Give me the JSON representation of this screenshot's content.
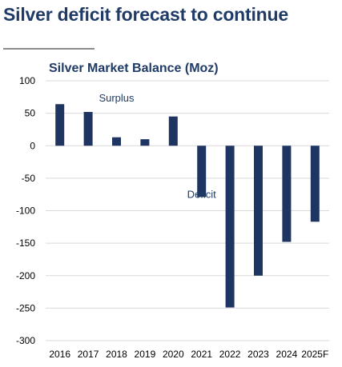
{
  "page": {
    "headline": "Silver deficit forecast to continue"
  },
  "colors": {
    "headline": "#1f3b66",
    "bar": "#1f3561",
    "grid": "#d9d9d9",
    "rule": "#8c8c8c"
  },
  "chart_data": {
    "type": "bar",
    "title": "Silver Market Balance (Moz)",
    "xlabel": "",
    "ylabel": "",
    "categories": [
      "2016",
      "2017",
      "2018",
      "2019",
      "2020",
      "2021",
      "2022",
      "2023",
      "2024",
      "2025F"
    ],
    "values": [
      64,
      52,
      13,
      10,
      45,
      -79,
      -249,
      -200,
      -148,
      -117
    ],
    "ylim": [
      -300,
      100
    ],
    "yticks": [
      100,
      50,
      0,
      -50,
      -100,
      -150,
      -200,
      -250,
      -300
    ],
    "grid": true,
    "legend": "none",
    "annotations": [
      {
        "text": "Surplus",
        "category_index": 2,
        "y": 68
      },
      {
        "text": "Deficit",
        "category_index": 5,
        "y": -80
      }
    ]
  }
}
